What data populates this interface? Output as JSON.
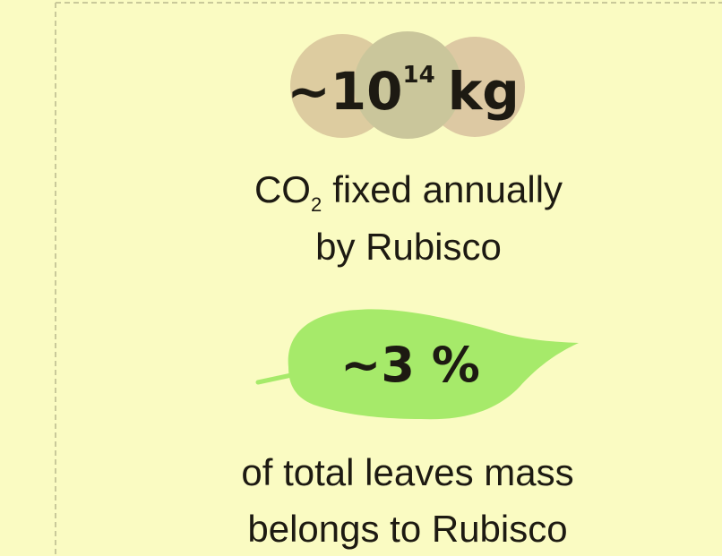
{
  "stat_mass": {
    "prefix": "~10",
    "exponent": "14",
    "unit": "kg"
  },
  "caption_mass": {
    "line1": {
      "base": "CO",
      "subscript": "2",
      "rest": "fixed annually"
    },
    "line2": "by Rubisco"
  },
  "stat_share": {
    "value": "~3 %"
  },
  "caption_share": {
    "line1": "of total leaves mass",
    "line2": "belongs to Rubisco"
  }
}
